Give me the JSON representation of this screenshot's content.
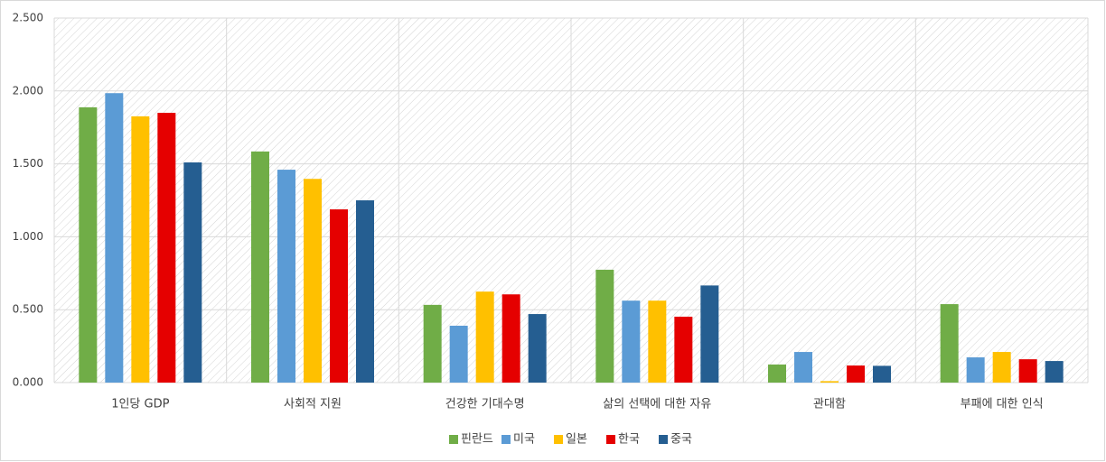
{
  "chart_data": {
    "type": "bar",
    "categories": [
      "1인당 GDP",
      "사회적 지원",
      "건강한 기대수명",
      "삶의 선택에 대한 자유",
      "관대함",
      "부패에 대한 인식"
    ],
    "series": [
      {
        "name": "핀란드",
        "color": "#70ad47",
        "values": [
          1.888,
          1.585,
          0.533,
          0.774,
          0.124,
          0.538
        ]
      },
      {
        "name": "미국",
        "color": "#5b9bd5",
        "values": [
          1.985,
          1.46,
          0.39,
          0.562,
          0.21,
          0.173
        ]
      },
      {
        "name": "일본",
        "color": "#ffc000",
        "values": [
          1.826,
          1.397,
          0.624,
          0.562,
          0.01,
          0.21
        ]
      },
      {
        "name": "한국",
        "color": "#e50000",
        "values": [
          1.85,
          1.188,
          0.605,
          0.452,
          0.117,
          0.16
        ]
      },
      {
        "name": "중국",
        "color": "#255e91",
        "values": [
          1.51,
          1.25,
          0.47,
          0.666,
          0.115,
          0.148
        ]
      }
    ],
    "ylim": [
      0,
      2.5
    ],
    "yticks": [
      {
        "value": 0,
        "label": "0.000"
      },
      {
        "value": 0.5,
        "label": "0.500"
      },
      {
        "value": 1,
        "label": "1.000"
      },
      {
        "value": 1.5,
        "label": "1.500"
      },
      {
        "value": 2,
        "label": "2.000"
      },
      {
        "value": 2.5,
        "label": "2.500"
      }
    ],
    "grid": true,
    "legend": "bottom"
  }
}
